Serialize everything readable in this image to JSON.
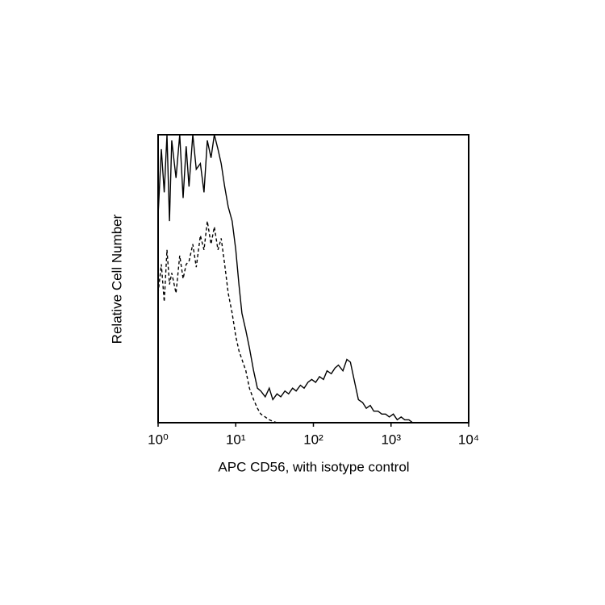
{
  "chart_data": {
    "type": "line",
    "xlabel": "APC CD56, with isotype control",
    "ylabel": "Relative Cell Number",
    "xscale": "log",
    "xlim": [
      1,
      10000
    ],
    "xticks": [
      {
        "value": 1,
        "label": "10⁰"
      },
      {
        "value": 10,
        "label": "10¹"
      },
      {
        "value": 100,
        "label": "10²"
      },
      {
        "value": 1000,
        "label": "10³"
      },
      {
        "value": 10000,
        "label": "10⁴"
      }
    ],
    "ylim": [
      0,
      100
    ],
    "x": [
      1,
      1.1,
      1.2,
      1.3,
      1.4,
      1.5,
      1.7,
      1.9,
      2.1,
      2.3,
      2.5,
      2.8,
      3.1,
      3.5,
      3.9,
      4.3,
      4.8,
      5.3,
      5.9,
      6.5,
      7.2,
      8,
      9,
      10,
      11,
      12,
      13.5,
      15,
      17,
      19,
      21,
      24,
      27,
      30,
      34,
      38,
      43,
      48,
      54,
      60,
      68,
      76,
      85,
      95,
      107,
      120,
      135,
      150,
      170,
      190,
      210,
      240,
      270,
      300,
      340,
      380,
      430,
      480,
      540,
      600,
      680,
      760,
      850,
      950,
      1070,
      1200,
      1350,
      1500,
      1700,
      1900,
      2100,
      2400,
      2700,
      3000
    ],
    "series": [
      {
        "color": "#000000",
        "line_style": "solid",
        "values": [
          72,
          95,
          80,
          100,
          70,
          98,
          85,
          100,
          78,
          96,
          82,
          100,
          88,
          90,
          80,
          98,
          92,
          100,
          95,
          90,
          82,
          75,
          70,
          60,
          48,
          38,
          32,
          26,
          18,
          12,
          11,
          9,
          12,
          8,
          10,
          9,
          11,
          10,
          12,
          11,
          13,
          12,
          14,
          15,
          14,
          16,
          15,
          18,
          17,
          19,
          20,
          18,
          22,
          21,
          14,
          8,
          7,
          5,
          6,
          4,
          4,
          3,
          3,
          2,
          3,
          1,
          2,
          1,
          1,
          0,
          0,
          0,
          0,
          0
        ]
      },
      {
        "color": "#000000",
        "line_style": "dashed",
        "values": [
          45,
          55,
          42,
          60,
          48,
          52,
          45,
          58,
          50,
          55,
          56,
          62,
          54,
          65,
          60,
          70,
          62,
          68,
          60,
          64,
          55,
          45,
          38,
          30,
          25,
          22,
          18,
          12,
          8,
          5,
          3,
          2,
          1,
          0.5,
          0,
          0,
          0,
          0,
          0,
          0,
          0,
          0,
          0,
          0,
          0,
          0,
          0,
          0,
          0,
          0,
          0,
          0,
          0,
          0,
          0,
          0,
          0,
          0,
          0,
          0,
          0,
          0,
          0,
          0,
          0,
          0,
          0,
          0,
          0,
          0,
          0,
          0,
          0,
          0
        ]
      }
    ]
  }
}
